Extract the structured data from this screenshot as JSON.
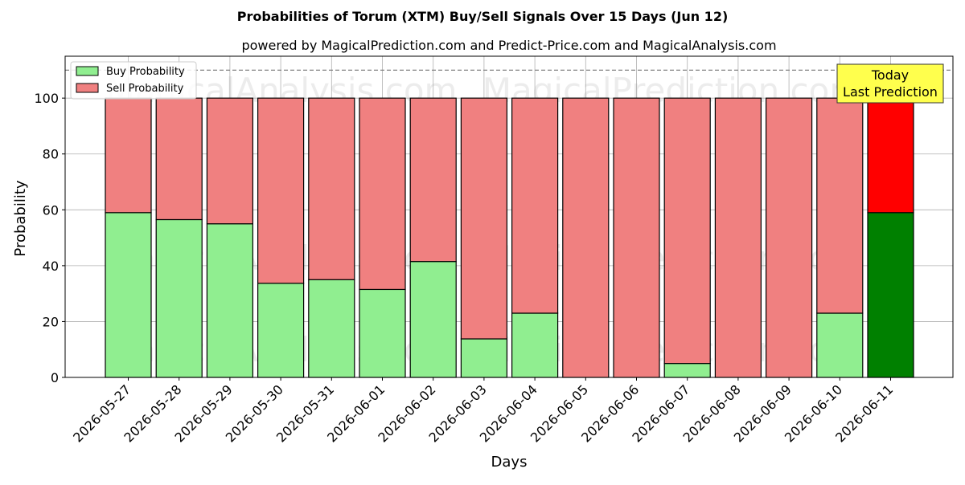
{
  "chart_data": {
    "type": "bar",
    "stacked": true,
    "title": "Probabilities of Torum (XTM) Buy/Sell Signals Over 15 Days (Jun 12)",
    "subtitle": "powered by MagicalPrediction.com and Predict-Price.com and MagicalAnalysis.com",
    "xlabel": "Days",
    "ylabel": "Probability",
    "ylim": [
      0,
      115
    ],
    "yticks": [
      0,
      20,
      40,
      60,
      80,
      100
    ],
    "reference_line": 110,
    "grid": true,
    "legend_position": "top-left",
    "categories": [
      "2026-05-27",
      "2026-05-28",
      "2026-05-29",
      "2026-05-30",
      "2026-05-31",
      "2026-06-01",
      "2026-06-02",
      "2026-06-03",
      "2026-06-04",
      "2026-06-05",
      "2026-06-06",
      "2026-06-07",
      "2026-06-08",
      "2026-06-09",
      "2026-06-10",
      "2026-06-11"
    ],
    "series": [
      {
        "name": "Buy Probability",
        "color": "#90ee90",
        "highlight_color": "#008000",
        "values": [
          59,
          56.5,
          55,
          33.7,
          35,
          31.5,
          41.5,
          13.8,
          23,
          0,
          0,
          5,
          0,
          0,
          23,
          59
        ]
      },
      {
        "name": "Sell Probability",
        "color": "#f08080",
        "highlight_color": "#ff0000",
        "values": [
          41,
          43.5,
          45,
          66.3,
          65,
          68.5,
          58.5,
          86.2,
          77,
          100,
          100,
          95,
          100,
          100,
          77,
          41
        ]
      }
    ],
    "highlight_index": 15,
    "annotation": {
      "lines": [
        "Today",
        "Last Prediction"
      ],
      "background": "#ffff4d"
    },
    "watermarks": [
      "MagicalAnalysis.com",
      "MagicalPrediction.com"
    ]
  }
}
